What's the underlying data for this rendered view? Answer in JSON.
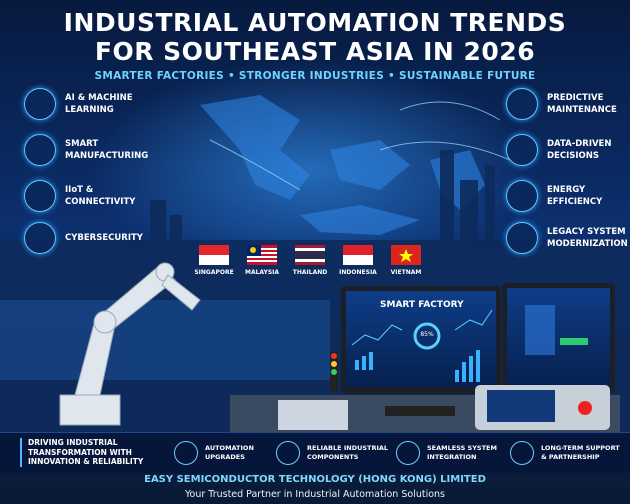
{
  "header": {
    "title": [
      "INDUSTRIAL AUTOMATION TRENDS",
      "FOR SOUTHEAST ASIA IN 2026"
    ],
    "subtitle": "SMARTER FACTORIES • STRONGER INDUSTRIES • SUSTAINABLE FUTURE"
  },
  "left_trends": [
    [
      "AI & MACHINE",
      "LEARNING"
    ],
    [
      "SMART",
      "MANUFACTURING"
    ],
    [
      "IIoT &",
      "CONNECTIVITY"
    ],
    [
      "CYBERSECURITY"
    ]
  ],
  "right_trends": [
    [
      "PREDICTIVE",
      "MAINTENANCE"
    ],
    [
      "DATA-DRIVEN",
      "DECISIONS"
    ],
    [
      "ENERGY",
      "EFFICIENCY"
    ],
    [
      "LEGACY SYSTEM",
      "MODERNIZATION"
    ]
  ],
  "countries": [
    "SINGAPORE",
    "MALAYSIA",
    "THAILAND",
    "INDONESIA",
    "VIETNAM"
  ],
  "screen": {
    "title": "SMART FACTORY",
    "gauge": "85%"
  },
  "band": {
    "tagline": [
      "DRIVING INDUSTRIAL",
      "TRANSFORMATION WITH",
      "INNOVATION & RELIABILITY"
    ],
    "items": [
      [
        "AUTOMATION",
        "UPGRADES"
      ],
      [
        "RELIABLE INDUSTRIAL",
        "COMPONENTS"
      ],
      [
        "SEAMLESS SYSTEM",
        "INTEGRATION"
      ],
      [
        "LONG-TERM SUPPORT",
        "& PARTNERSHIP"
      ]
    ]
  },
  "footer": {
    "company": "EASY SEMICONDUCTOR TECHNOLOGY (HONG KONG) LIMITED",
    "slogan": "Your Trusted Partner in Industrial Automation Solutions"
  }
}
